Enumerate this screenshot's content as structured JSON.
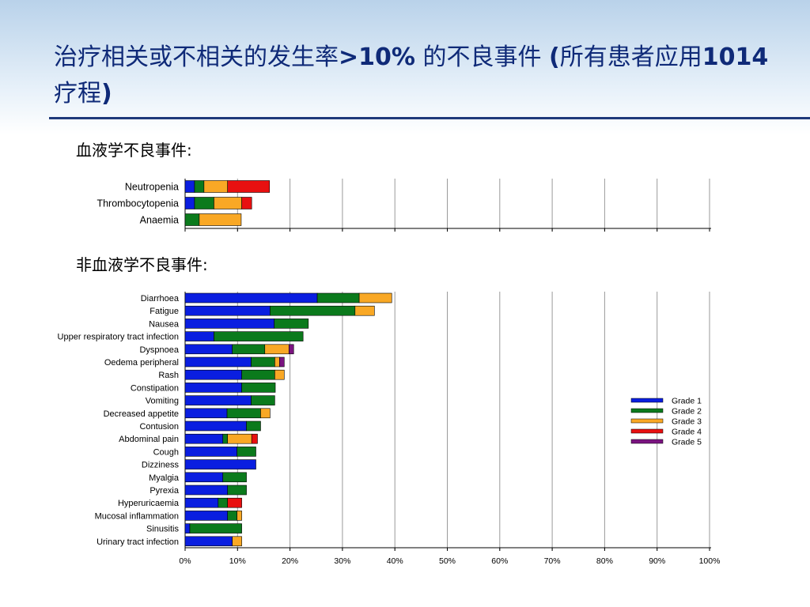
{
  "title": {
    "part1": "治疗相关或不相关的发生率",
    "part2": ">10%",
    "part3": " 的不良事件 ",
    "part4": "(",
    "part5": "所有患者应用",
    "part6": "1014",
    "part7": "疗程",
    "part8": ")"
  },
  "section_heme": "血液学不良事件:",
  "section_nonheme": "非血液学不良事件:",
  "chart_data": {
    "type": "bar",
    "orientation": "horizontal",
    "stacked": true,
    "x_ticks": [
      "0%",
      "10%",
      "20%",
      "30%",
      "40%",
      "50%",
      "60%",
      "70%",
      "80%",
      "90%",
      "100%"
    ],
    "xlim": [
      0,
      100
    ],
    "grid": "vertical",
    "legend_position": "right",
    "series": [
      {
        "name": "Grade 1",
        "color": "#0a1ee0"
      },
      {
        "name": "Grade 2",
        "color": "#0b7a1c"
      },
      {
        "name": "Grade 3",
        "color": "#f9a825"
      },
      {
        "name": "Grade 4",
        "color": "#e81010"
      },
      {
        "name": "Grade 5",
        "color": "#7b1480"
      }
    ],
    "panels": [
      {
        "id": "heme",
        "categories": [
          "Neutropenia",
          "Thrombocytopenia",
          "Anaemia"
        ],
        "values": [
          [
            1.8,
            1.8,
            4.5,
            8.0,
            0
          ],
          [
            1.8,
            3.7,
            5.3,
            1.9,
            0
          ],
          [
            0,
            2.7,
            8.0,
            0,
            0
          ]
        ]
      },
      {
        "id": "nonheme",
        "categories": [
          "Diarrhoea",
          "Fatigue",
          "Nausea",
          "Upper respiratory tract infection",
          "Dyspnoea",
          "Oedema peripheral",
          "Rash",
          "Constipation",
          "Vomiting",
          "Decreased appetite",
          "Contusion",
          "Abdominal pain",
          "Cough",
          "Dizziness",
          "Myalgia",
          "Pyrexia",
          "Hyperuricaemia",
          "Mucosal inflammation",
          "Sinusitis",
          "Urinary tract infection"
        ],
        "values": [
          [
            25.2,
            8.0,
            6.2,
            0,
            0
          ],
          [
            16.2,
            16.2,
            3.7,
            0,
            0
          ],
          [
            17.0,
            6.5,
            0,
            0,
            0
          ],
          [
            5.5,
            17.0,
            0,
            0,
            0
          ],
          [
            9.0,
            6.2,
            4.6,
            0,
            0.9
          ],
          [
            12.6,
            4.5,
            0.9,
            0,
            0.9
          ],
          [
            10.8,
            6.3,
            1.8,
            0,
            0
          ],
          [
            10.8,
            6.4,
            0,
            0,
            0
          ],
          [
            12.6,
            4.5,
            0,
            0,
            0
          ],
          [
            8.0,
            6.4,
            1.8,
            0,
            0
          ],
          [
            11.7,
            2.7,
            0,
            0,
            0
          ],
          [
            7.2,
            0.9,
            4.6,
            1.1,
            0
          ],
          [
            9.9,
            3.6,
            0,
            0,
            0
          ],
          [
            13.5,
            0,
            0,
            0,
            0
          ],
          [
            7.2,
            4.5,
            0,
            0,
            0
          ],
          [
            8.1,
            3.6,
            0,
            0,
            0
          ],
          [
            6.3,
            1.8,
            0,
            2.7,
            0
          ],
          [
            8.1,
            1.8,
            0.9,
            0,
            0
          ],
          [
            0.9,
            9.9,
            0,
            0,
            0
          ],
          [
            9.0,
            0,
            1.8,
            0,
            0
          ]
        ]
      }
    ]
  }
}
